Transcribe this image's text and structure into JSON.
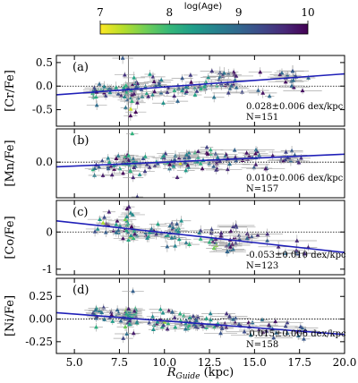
{
  "chart_data": [
    {
      "type": "colorbar",
      "title": "log(Age)",
      "ticks": [
        7,
        8,
        9,
        10
      ],
      "range": [
        7,
        10
      ],
      "colormap": "viridis_r",
      "colors": [
        "#fde725",
        "#b5de2b",
        "#6ece58",
        "#35b779",
        "#1f9e89",
        "#26828e",
        "#31688e",
        "#3e4989",
        "#482878",
        "#440154"
      ]
    },
    {
      "type": "scatter",
      "panel": "(a)",
      "ylabel": "[Cr/Fe]",
      "ylim": [
        -0.85,
        0.65
      ],
      "yticks": [
        -0.5,
        0.0,
        0.5
      ],
      "ytick_labels": [
        "-0.5",
        "0.0",
        "0.5"
      ],
      "xlim": [
        4,
        20
      ],
      "fit": {
        "x": [
          4,
          20
        ],
        "y": [
          -0.185,
          0.26
        ]
      },
      "annotation": [
        "0.028±0.006 dex/kpc",
        "N=151"
      ],
      "n_points": 151
    },
    {
      "type": "scatter",
      "panel": "(b)",
      "ylabel": "[Mn/Fe]",
      "ylim": [
        -0.45,
        0.42
      ],
      "yticks": [
        0.0
      ],
      "ytick_labels": [
        "0.0"
      ],
      "xlim": [
        4,
        20
      ],
      "fit": {
        "x": [
          4,
          20
        ],
        "y": [
          -0.06,
          0.1
        ]
      },
      "annotation": [
        "0.010±0.006 dex/kpc",
        "N=157"
      ],
      "n_points": 157
    },
    {
      "type": "scatter",
      "panel": "(c)",
      "ylabel": "[Co/Fe]",
      "ylim": [
        -1.15,
        0.85
      ],
      "yticks": [
        -1,
        0
      ],
      "ytick_labels": [
        "-1",
        "0"
      ],
      "xlim": [
        4,
        20
      ],
      "fit": {
        "x": [
          4,
          20
        ],
        "y": [
          0.3,
          -0.55
        ]
      },
      "annotation": [
        "-0.053±0.010 dex/kpc",
        "N=123"
      ],
      "n_points": 123
    },
    {
      "type": "scatter",
      "panel": "(d)",
      "ylabel": "[Ni/Fe]",
      "ylim": [
        -0.38,
        0.45
      ],
      "yticks": [
        -0.25,
        0.0,
        0.25
      ],
      "ytick_labels": [
        "-0.25",
        "0.00",
        "0.25"
      ],
      "xlim": [
        4,
        20
      ],
      "fit": {
        "x": [
          4,
          20
        ],
        "y": [
          0.07,
          -0.17
        ]
      },
      "annotation": [
        "-0.015±0.006 dex/kpc",
        "N=158"
      ],
      "n_points": 158,
      "xticks": [
        5.0,
        7.5,
        10.0,
        12.5,
        15.0,
        17.5,
        20.0
      ],
      "xtick_labels": [
        "5.0",
        "7.5",
        "10.0",
        "12.5",
        "15.0",
        "17.5",
        "20.0"
      ],
      "xlabel_main": "R",
      "xlabel_sub": "Guide",
      "xlabel_unit": " (kpc)"
    }
  ],
  "reference": {
    "solar_radius_kpc": 8.0,
    "zero_line": 0.0
  },
  "colors": {
    "fit_line": "#1f1fb8",
    "axis": "#000000",
    "reference_line": "#808080"
  }
}
